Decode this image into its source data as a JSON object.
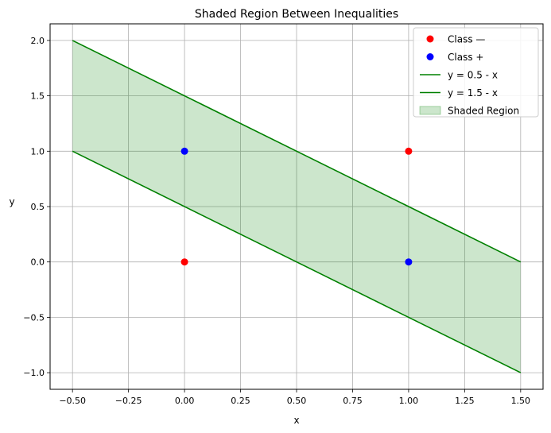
{
  "chart_data": {
    "type": "scatter",
    "title": "Shaded Region Between Inequalities",
    "xlabel": "x",
    "ylabel": "y",
    "xlim": [
      -0.6,
      1.6
    ],
    "ylim": [
      -1.15,
      2.15
    ],
    "xticks": [
      -0.5,
      -0.25,
      0.0,
      0.25,
      0.5,
      0.75,
      1.0,
      1.25,
      1.5
    ],
    "xtick_labels": [
      "−0.50",
      "−0.25",
      "0.00",
      "0.25",
      "0.50",
      "0.75",
      "1.00",
      "1.25",
      "1.50"
    ],
    "yticks": [
      -1.0,
      -0.5,
      0.0,
      0.5,
      1.0,
      1.5,
      2.0
    ],
    "ytick_labels": [
      "−1.0",
      "−0.5",
      "0.0",
      "0.5",
      "1.0",
      "1.5",
      "2.0"
    ],
    "grid": true,
    "legend_position": "top-right",
    "scatter_series": [
      {
        "name": "Class —",
        "color": "#ff0000",
        "points": [
          [
            0,
            0
          ],
          [
            1,
            1
          ]
        ]
      },
      {
        "name": "Class +",
        "color": "#0000ff",
        "points": [
          [
            0,
            1
          ],
          [
            1,
            0
          ]
        ]
      }
    ],
    "line_series": [
      {
        "name": "y = 0.5 - x",
        "color": "#008000",
        "points": [
          [
            -0.5,
            1.0
          ],
          [
            1.5,
            -1.0
          ]
        ]
      },
      {
        "name": "y = 1.5 - x",
        "color": "#008000",
        "points": [
          [
            -0.5,
            2.0
          ],
          [
            1.5,
            0.0
          ]
        ]
      }
    ],
    "shaded_region": {
      "name": "Shaded Region",
      "color": "#008000",
      "opacity": 0.2,
      "x": [
        -0.5,
        1.5
      ],
      "lower": "y = 0.5 - x",
      "upper": "y = 1.5 - x"
    }
  }
}
